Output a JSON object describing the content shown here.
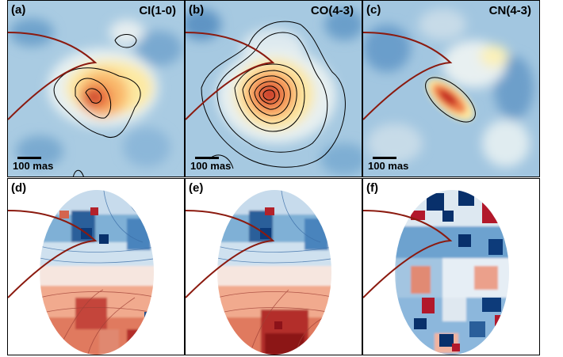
{
  "panels": {
    "a": {
      "label": "(a)",
      "title": "CI(1-0)",
      "scale": "100 mas"
    },
    "b": {
      "label": "(b)",
      "title": "CO(4-3)",
      "scale": "100 mas"
    },
    "c": {
      "label": "(c)",
      "title": "CN(4-3)",
      "scale": "100 mas"
    },
    "d": {
      "label": "(d)"
    },
    "e": {
      "label": "(e)"
    },
    "f": {
      "label": "(f)"
    }
  },
  "colors": {
    "caustic": "#8b1a0f",
    "background_blue": "#9fc4df",
    "positive_red": "#b2182b",
    "negative_blue": "#2166ac"
  }
}
